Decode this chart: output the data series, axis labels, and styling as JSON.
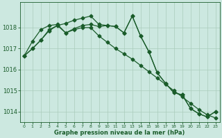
{
  "background_color": "#cce8e0",
  "grid_color": "#aaccbb",
  "line_color": "#1a5c2a",
  "xlabel": "Graphe pression niveau de la mer (hPa)",
  "xlim": [
    -0.5,
    23.5
  ],
  "ylim": [
    1013.5,
    1019.2
  ],
  "yticks": [
    1014,
    1015,
    1016,
    1017,
    1018
  ],
  "xticks": [
    0,
    1,
    2,
    3,
    4,
    5,
    6,
    7,
    8,
    9,
    10,
    11,
    12,
    13,
    14,
    15,
    16,
    17,
    18,
    19,
    20,
    21,
    22,
    23
  ],
  "series1_x": [
    0,
    1,
    2,
    3,
    4,
    5,
    6,
    7,
    8,
    9,
    10,
    11,
    12,
    13,
    14,
    15,
    16,
    17,
    18,
    19,
    20,
    21,
    22,
    23
  ],
  "series1_y": [
    1016.65,
    1017.0,
    1017.4,
    1017.9,
    1018.1,
    1018.2,
    1018.35,
    1018.45,
    1018.55,
    1018.15,
    1018.1,
    1018.05,
    1017.75,
    1018.55,
    1017.6,
    1016.85,
    1015.85,
    1015.35,
    1014.9,
    1014.8,
    1014.15,
    1013.9,
    1013.75,
    1014.0
  ],
  "series2_x": [
    0,
    1,
    2,
    3,
    4,
    5,
    6,
    7,
    8,
    9,
    10,
    11,
    12,
    13,
    14,
    15,
    16,
    17,
    18,
    19,
    20,
    21,
    22,
    23
  ],
  "series2_y": [
    1016.65,
    1017.35,
    1017.9,
    1018.1,
    1018.15,
    1017.75,
    1017.95,
    1018.1,
    1018.15,
    1018.05,
    1018.1,
    1018.05,
    1017.75,
    1018.55,
    1017.6,
    1016.85,
    1015.85,
    1015.35,
    1014.9,
    1014.8,
    1014.15,
    1013.9,
    1013.75,
    1014.0
  ],
  "series3_x": [
    0,
    1,
    2,
    3,
    4,
    5,
    6,
    7,
    8,
    9,
    10,
    11,
    12,
    13,
    14,
    15,
    16,
    17,
    18,
    19,
    20,
    21,
    22,
    23
  ],
  "series3_y": [
    1016.65,
    1017.0,
    1017.4,
    1017.85,
    1018.1,
    1017.75,
    1017.9,
    1018.0,
    1018.0,
    1017.6,
    1017.3,
    1017.0,
    1016.75,
    1016.5,
    1016.2,
    1015.9,
    1015.6,
    1015.3,
    1015.0,
    1014.7,
    1014.4,
    1014.1,
    1013.85,
    1013.7
  ],
  "xlabel_fontsize": 6.0,
  "ytick_fontsize": 6,
  "xtick_fontsize": 4.5,
  "linewidth": 0.9,
  "markersize": 2.5
}
